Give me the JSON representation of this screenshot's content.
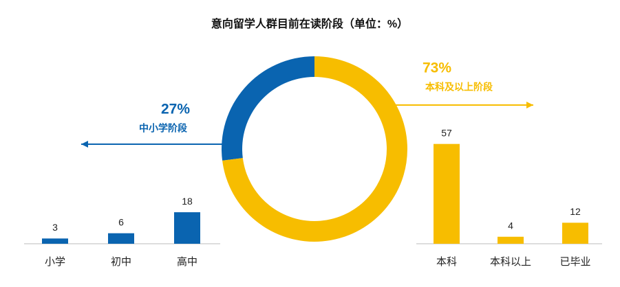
{
  "chart_data": [
    {
      "type": "pie",
      "title": "意向留学人群目前在读阶段（单位：%）",
      "categories": [
        "中小学阶段",
        "本科及以上阶段"
      ],
      "values": [
        27,
        73
      ],
      "value_labels": [
        "27%",
        "73%"
      ],
      "colors": [
        "#0a64b0",
        "#f7bd00"
      ]
    },
    {
      "type": "bar",
      "categories": [
        "小学",
        "初中",
        "高中"
      ],
      "values": [
        3,
        6,
        18
      ],
      "color": "#0a64b0"
    },
    {
      "type": "bar",
      "categories": [
        "本科",
        "本科以上",
        "已毕业"
      ],
      "values": [
        57,
        4,
        12
      ],
      "color": "#f7bd00"
    }
  ]
}
